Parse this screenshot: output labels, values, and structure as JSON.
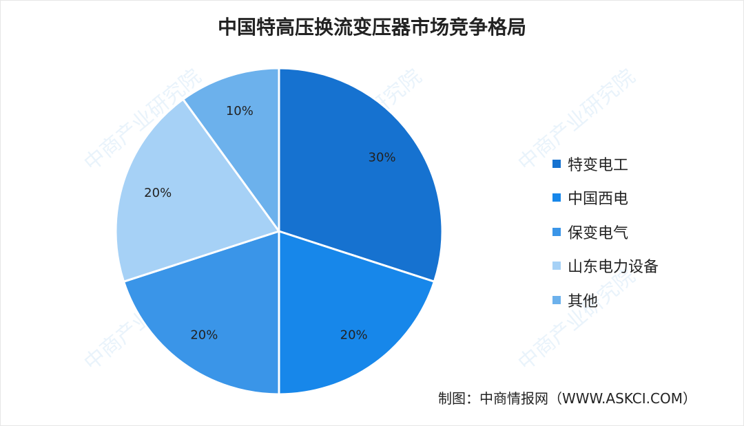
{
  "chart_data": {
    "type": "pie",
    "title": "中国特高压换流变压器市场竞争格局",
    "categories": [
      "特变电工",
      "中国西电",
      "保变电气",
      "山东电力设备",
      "其他"
    ],
    "values": [
      30,
      20,
      20,
      20,
      10
    ],
    "labels": [
      "30%",
      "20%",
      "20%",
      "20%",
      "10%"
    ],
    "colors": [
      "#1672d0",
      "#1787ea",
      "#3a95e8",
      "#a6d1f6",
      "#6cb1ec"
    ],
    "legend_placement": "right",
    "start": "top, clockwise"
  },
  "source": "制图：中商情报网（WWW.ASKCI.COM）",
  "watermark": "中商产业研究院"
}
